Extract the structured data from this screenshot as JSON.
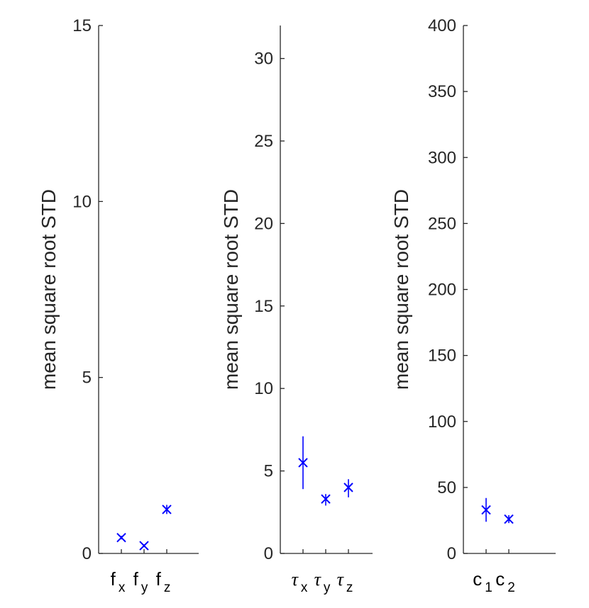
{
  "chart_data": [
    {
      "type": "scatter",
      "ylabel": "mean square root STD",
      "ylim": [
        0,
        15
      ],
      "yticks": [
        "0",
        "5",
        "10",
        "15"
      ],
      "categories": [
        {
          "main": "f",
          "sub": "x"
        },
        {
          "main": "f",
          "sub": "y"
        },
        {
          "main": "f",
          "sub": "z"
        }
      ],
      "values": [
        0.45,
        0.22,
        1.25
      ],
      "error_low": [
        0.4,
        0.18,
        1.12
      ],
      "error_high": [
        0.5,
        0.26,
        1.38
      ],
      "marker": "x",
      "color": "#0000ff"
    },
    {
      "type": "scatter",
      "ylabel": "mean square root STD",
      "ylim": [
        0,
        32
      ],
      "yticks": [
        "0",
        "5",
        "10",
        "15",
        "20",
        "25",
        "30"
      ],
      "categories": [
        {
          "main": "τ",
          "sub": "x",
          "greek": true
        },
        {
          "main": "τ",
          "sub": "y",
          "greek": true
        },
        {
          "main": "τ",
          "sub": "z",
          "greek": true
        }
      ],
      "values": [
        5.5,
        3.3,
        4.0
      ],
      "error_low": [
        3.9,
        2.9,
        3.4
      ],
      "error_high": [
        7.1,
        3.6,
        4.5
      ],
      "marker": "x",
      "color": "#0000ff"
    },
    {
      "type": "scatter",
      "ylabel": "mean square root STD",
      "ylim": [
        0,
        400
      ],
      "yticks": [
        "0",
        "50",
        "100",
        "150",
        "200",
        "250",
        "300",
        "350",
        "400"
      ],
      "categories": [
        {
          "main": "c",
          "sub": "1"
        },
        {
          "main": "c",
          "sub": "2"
        }
      ],
      "values": [
        33,
        26
      ],
      "error_low": [
        24,
        23
      ],
      "error_high": [
        42,
        29
      ],
      "marker": "x",
      "color": "#0000ff"
    }
  ]
}
